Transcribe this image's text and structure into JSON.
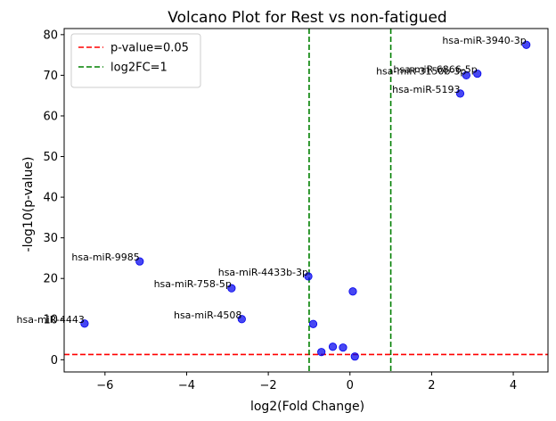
{
  "chart_data": {
    "type": "scatter",
    "title": "Volcano Plot for Rest vs non-fatigued",
    "xlabel": "log2(Fold Change)",
    "ylabel": "-log10(p-value)",
    "xlim": [
      -7.0,
      4.85
    ],
    "ylim": [
      -3.0,
      81.5
    ],
    "xticks": [
      -6,
      -4,
      -2,
      0,
      2,
      4
    ],
    "yticks": [
      0,
      10,
      20,
      30,
      40,
      50,
      60,
      70,
      80
    ],
    "grid": false,
    "legend_position": "top-left",
    "point_color": "#0000ee",
    "points": [
      {
        "x": 4.32,
        "y": 77.5,
        "label": "hsa-miR-3940-3p"
      },
      {
        "x": 3.12,
        "y": 70.4,
        "label": "hsa-miR-6866-5p"
      },
      {
        "x": 2.85,
        "y": 70.0,
        "label": "hsa-miR-3150b-3p"
      },
      {
        "x": 2.7,
        "y": 65.5,
        "label": "hsa-miR-5193"
      },
      {
        "x": -5.15,
        "y": 24.2,
        "label": "hsa-miR-9985"
      },
      {
        "x": -1.02,
        "y": 20.5,
        "label": "hsa-miR-4433b-3p"
      },
      {
        "x": -2.9,
        "y": 17.6,
        "label": "hsa-miR-758-5p"
      },
      {
        "x": -6.5,
        "y": 8.9,
        "label": "hsa-miR-4443"
      },
      {
        "x": -2.65,
        "y": 10.0,
        "label": "hsa-miR-4508"
      },
      {
        "x": 0.07,
        "y": 16.8,
        "label": ""
      },
      {
        "x": -0.9,
        "y": 8.8,
        "label": ""
      },
      {
        "x": -0.42,
        "y": 3.2,
        "label": ""
      },
      {
        "x": -0.17,
        "y": 3.0,
        "label": ""
      },
      {
        "x": -0.7,
        "y": 1.9,
        "label": ""
      },
      {
        "x": 0.12,
        "y": 0.8,
        "label": ""
      }
    ],
    "threshold_lines": [
      {
        "orientation": "horizontal",
        "value": 1.301,
        "color": "#ff0000",
        "legend": "p-value=0.05"
      },
      {
        "orientation": "vertical",
        "value": -1,
        "color": "#008000",
        "legend": "log2FC=1"
      },
      {
        "orientation": "vertical",
        "value": 1,
        "color": "#008000",
        "legend": ""
      }
    ]
  }
}
